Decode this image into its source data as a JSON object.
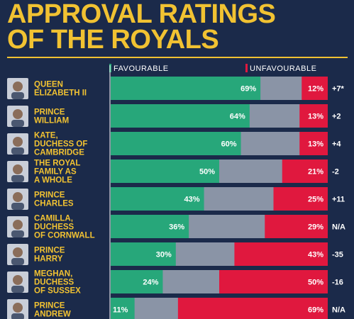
{
  "title_lines": [
    "APPROVAL RATINGS",
    "OF THE ROYALS"
  ],
  "colors": {
    "background": "#1b2a4a",
    "title": "#f1c232",
    "favourable": "#27a77a",
    "unfavourable": "#e0183e",
    "neutral": "#8a94a6",
    "label": "#f1c232",
    "value_text": "#ffffff"
  },
  "chart_data": {
    "type": "bar",
    "stacked": true,
    "orientation": "horizontal",
    "xlim": [
      0,
      100
    ],
    "legend": {
      "placement": "top",
      "entries": [
        "FAVOURABLE",
        "UNFAVOURABLE"
      ]
    },
    "categories": [
      {
        "lines": [
          "QUEEN",
          "ELIZABETH II"
        ],
        "icon": "queen-elizabeth-portrait-icon"
      },
      {
        "lines": [
          "PRINCE",
          "WILLIAM"
        ],
        "icon": "prince-william-portrait-icon"
      },
      {
        "lines": [
          "KATE,",
          "DUCHESS OF",
          "CAMBRIDGE"
        ],
        "icon": "kate-portrait-icon"
      },
      {
        "lines": [
          "THE ROYAL",
          "FAMILY AS",
          "A WHOLE"
        ],
        "icon": "crown-icon"
      },
      {
        "lines": [
          "PRINCE",
          "CHARLES"
        ],
        "icon": "prince-charles-portrait-icon"
      },
      {
        "lines": [
          "CAMILLA,",
          "DUCHESS",
          "OF CORNWALL"
        ],
        "icon": "camilla-portrait-icon"
      },
      {
        "lines": [
          "PRINCE",
          "HARRY"
        ],
        "icon": "prince-harry-portrait-icon"
      },
      {
        "lines": [
          "MEGHAN,",
          "DUCHESS",
          "OF SUSSEX"
        ],
        "icon": "meghan-portrait-icon"
      },
      {
        "lines": [
          "PRINCE",
          "ANDREW"
        ],
        "icon": "prince-andrew-portrait-icon"
      }
    ],
    "favourable": [
      69,
      64,
      60,
      50,
      43,
      36,
      30,
      24,
      11
    ],
    "unfavourable": [
      12,
      13,
      13,
      21,
      25,
      29,
      43,
      50,
      69
    ],
    "favourable_labels": [
      "69%",
      "64%",
      "60%",
      "50%",
      "43%",
      "36%",
      "30%",
      "24%",
      "11%"
    ],
    "unfavourable_labels": [
      "12%",
      "13%",
      "13%",
      "21%",
      "25%",
      "29%",
      "43%",
      "50%",
      "69%"
    ],
    "net_labels": [
      "+7*",
      "+2",
      "+4",
      "-2",
      "+11",
      "N/A",
      "-35",
      "-16",
      "N/A"
    ]
  }
}
